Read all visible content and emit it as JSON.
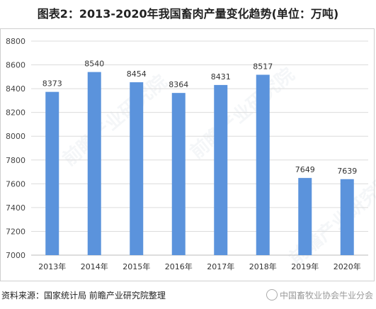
{
  "title": "图表2：2013-2020年我国畜肉产量变化趋势(单位：万吨)",
  "source": "资料来源：国家统计局 前瞻产业研究院整理",
  "footer_watermark": "中国畜牧业协会牛业分会",
  "background_watermark": "前瞻产业研究院",
  "bar_color": "#5b93dc",
  "chart_data": {
    "type": "bar",
    "categories": [
      "2013年",
      "2014年",
      "2015年",
      "2016年",
      "2017年",
      "2018年",
      "2019年",
      "2020年"
    ],
    "values": [
      8373,
      8540,
      8454,
      8364,
      8431,
      8517,
      7649,
      7639
    ],
    "ylim": [
      7000,
      8800
    ],
    "yticks": [
      7000,
      7200,
      7400,
      7600,
      7800,
      8000,
      8200,
      8400,
      8600,
      8800
    ],
    "grid": true,
    "legend": "none"
  }
}
